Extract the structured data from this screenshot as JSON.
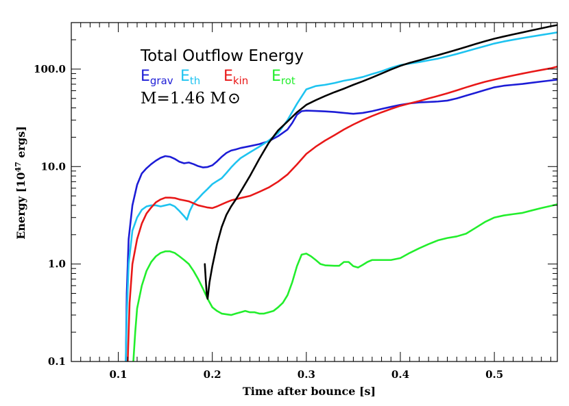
{
  "chart_data": {
    "type": "line",
    "title": "Total Outflow Energy",
    "annotation": "M=1.46 M",
    "annotation_symbol": "⊙",
    "xlabel": "Time after bounce [s]",
    "ylabel_main": "Energy [10",
    "ylabel_sup": "47",
    "ylabel_end": " ergs]",
    "xlim": [
      0.05,
      0.567
    ],
    "ylim": [
      0.1,
      300
    ],
    "yscale": "log",
    "grid": false,
    "legend_placement": "top-left",
    "x_ticks": [
      {
        "value": 0.1,
        "label": "0.1"
      },
      {
        "value": 0.2,
        "label": "0.2"
      },
      {
        "value": 0.3,
        "label": "0.3"
      },
      {
        "value": 0.4,
        "label": "0.4"
      },
      {
        "value": 0.5,
        "label": "0.5"
      }
    ],
    "y_ticks": [
      {
        "value": 0.1,
        "label": "0.1"
      },
      {
        "value": 1.0,
        "label": "1.0"
      },
      {
        "value": 10.0,
        "label": "10.0"
      },
      {
        "value": 100.0,
        "label": "100.0"
      }
    ],
    "series": [
      {
        "name": "E",
        "sub": "grav",
        "color": "#1c1cd6",
        "points": [
          [
            0.108,
            0.1
          ],
          [
            0.109,
            0.5
          ],
          [
            0.111,
            1.8
          ],
          [
            0.115,
            4.0
          ],
          [
            0.12,
            6.5
          ],
          [
            0.125,
            8.5
          ],
          [
            0.13,
            9.6
          ],
          [
            0.135,
            10.6
          ],
          [
            0.14,
            11.5
          ],
          [
            0.145,
            12.3
          ],
          [
            0.15,
            12.8
          ],
          [
            0.155,
            12.6
          ],
          [
            0.16,
            12.0
          ],
          [
            0.165,
            11.2
          ],
          [
            0.17,
            10.8
          ],
          [
            0.175,
            11.0
          ],
          [
            0.18,
            10.6
          ],
          [
            0.185,
            10.1
          ],
          [
            0.19,
            9.8
          ],
          [
            0.195,
            9.9
          ],
          [
            0.2,
            10.3
          ],
          [
            0.205,
            11.3
          ],
          [
            0.21,
            12.6
          ],
          [
            0.215,
            13.8
          ],
          [
            0.22,
            14.6
          ],
          [
            0.225,
            15.0
          ],
          [
            0.23,
            15.5
          ],
          [
            0.24,
            16.2
          ],
          [
            0.25,
            17.0
          ],
          [
            0.26,
            18.2
          ],
          [
            0.27,
            20.5
          ],
          [
            0.28,
            24.0
          ],
          [
            0.285,
            28.0
          ],
          [
            0.29,
            34.0
          ],
          [
            0.295,
            37.0
          ],
          [
            0.3,
            37.5
          ],
          [
            0.31,
            37.2
          ],
          [
            0.32,
            36.8
          ],
          [
            0.33,
            36.3
          ],
          [
            0.34,
            35.5
          ],
          [
            0.35,
            34.8
          ],
          [
            0.36,
            35.5
          ],
          [
            0.37,
            37.0
          ],
          [
            0.38,
            39.0
          ],
          [
            0.39,
            41.0
          ],
          [
            0.4,
            43.0
          ],
          [
            0.41,
            44.5
          ],
          [
            0.42,
            45.5
          ],
          [
            0.43,
            46.0
          ],
          [
            0.44,
            46.5
          ],
          [
            0.45,
            47.5
          ],
          [
            0.46,
            50.0
          ],
          [
            0.47,
            53.5
          ],
          [
            0.48,
            57.0
          ],
          [
            0.49,
            61.0
          ],
          [
            0.5,
            65.0
          ],
          [
            0.51,
            67.5
          ],
          [
            0.52,
            69.0
          ],
          [
            0.53,
            70.5
          ],
          [
            0.54,
            72.5
          ],
          [
            0.55,
            74.5
          ],
          [
            0.56,
            76.5
          ],
          [
            0.567,
            78.0
          ]
        ]
      },
      {
        "name": "E",
        "sub": "th",
        "color": "#1ec3f0",
        "points": [
          [
            0.108,
            0.1
          ],
          [
            0.109,
            0.3
          ],
          [
            0.111,
            1.0
          ],
          [
            0.115,
            2.2
          ],
          [
            0.12,
            3.0
          ],
          [
            0.125,
            3.6
          ],
          [
            0.13,
            3.9
          ],
          [
            0.135,
            4.0
          ],
          [
            0.14,
            4.0
          ],
          [
            0.145,
            3.9
          ],
          [
            0.15,
            4.0
          ],
          [
            0.155,
            4.1
          ],
          [
            0.16,
            3.9
          ],
          [
            0.165,
            3.5
          ],
          [
            0.17,
            3.1
          ],
          [
            0.173,
            2.85
          ],
          [
            0.176,
            3.5
          ],
          [
            0.18,
            4.2
          ],
          [
            0.185,
            4.7
          ],
          [
            0.19,
            5.3
          ],
          [
            0.195,
            5.9
          ],
          [
            0.2,
            6.6
          ],
          [
            0.205,
            7.1
          ],
          [
            0.21,
            7.6
          ],
          [
            0.215,
            8.6
          ],
          [
            0.22,
            9.8
          ],
          [
            0.225,
            11.0
          ],
          [
            0.23,
            12.2
          ],
          [
            0.24,
            14.0
          ],
          [
            0.25,
            16.0
          ],
          [
            0.26,
            18.5
          ],
          [
            0.27,
            22.0
          ],
          [
            0.28,
            30.0
          ],
          [
            0.29,
            44.0
          ],
          [
            0.3,
            62.0
          ],
          [
            0.31,
            67.0
          ],
          [
            0.32,
            69.0
          ],
          [
            0.33,
            72.0
          ],
          [
            0.34,
            76.0
          ],
          [
            0.35,
            79.0
          ],
          [
            0.36,
            83.0
          ],
          [
            0.37,
            89.0
          ],
          [
            0.38,
            95.0
          ],
          [
            0.39,
            103.0
          ],
          [
            0.4,
            110.0
          ],
          [
            0.41,
            114.0
          ],
          [
            0.42,
            118.0
          ],
          [
            0.43,
            123.0
          ],
          [
            0.44,
            128.0
          ],
          [
            0.45,
            135.0
          ],
          [
            0.46,
            143.0
          ],
          [
            0.47,
            152.0
          ],
          [
            0.48,
            162.0
          ],
          [
            0.49,
            172.0
          ],
          [
            0.5,
            183.0
          ],
          [
            0.51,
            192.0
          ],
          [
            0.52,
            200.0
          ],
          [
            0.53,
            208.0
          ],
          [
            0.54,
            216.0
          ],
          [
            0.55,
            224.0
          ],
          [
            0.56,
            232.0
          ],
          [
            0.567,
            238.0
          ]
        ]
      },
      {
        "name": "E",
        "sub": "kin",
        "color": "#e81818",
        "points": [
          [
            0.11,
            0.1
          ],
          [
            0.112,
            0.4
          ],
          [
            0.115,
            1.0
          ],
          [
            0.12,
            1.8
          ],
          [
            0.125,
            2.6
          ],
          [
            0.13,
            3.3
          ],
          [
            0.135,
            3.8
          ],
          [
            0.14,
            4.3
          ],
          [
            0.145,
            4.6
          ],
          [
            0.15,
            4.8
          ],
          [
            0.155,
            4.8
          ],
          [
            0.16,
            4.75
          ],
          [
            0.165,
            4.6
          ],
          [
            0.17,
            4.5
          ],
          [
            0.175,
            4.4
          ],
          [
            0.18,
            4.2
          ],
          [
            0.185,
            4.0
          ],
          [
            0.19,
            3.9
          ],
          [
            0.195,
            3.8
          ],
          [
            0.2,
            3.75
          ],
          [
            0.205,
            3.9
          ],
          [
            0.21,
            4.1
          ],
          [
            0.215,
            4.3
          ],
          [
            0.22,
            4.5
          ],
          [
            0.23,
            4.75
          ],
          [
            0.24,
            5.0
          ],
          [
            0.25,
            5.5
          ],
          [
            0.26,
            6.1
          ],
          [
            0.27,
            7.0
          ],
          [
            0.28,
            8.3
          ],
          [
            0.29,
            10.5
          ],
          [
            0.3,
            13.5
          ],
          [
            0.31,
            16.0
          ],
          [
            0.32,
            18.5
          ],
          [
            0.33,
            21.0
          ],
          [
            0.34,
            24.0
          ],
          [
            0.35,
            27.0
          ],
          [
            0.36,
            30.0
          ],
          [
            0.37,
            33.0
          ],
          [
            0.38,
            36.0
          ],
          [
            0.39,
            39.0
          ],
          [
            0.4,
            42.0
          ],
          [
            0.41,
            44.5
          ],
          [
            0.42,
            47.0
          ],
          [
            0.43,
            50.0
          ],
          [
            0.44,
            53.0
          ],
          [
            0.45,
            56.5
          ],
          [
            0.46,
            60.5
          ],
          [
            0.47,
            65.0
          ],
          [
            0.48,
            69.5
          ],
          [
            0.49,
            74.0
          ],
          [
            0.5,
            78.0
          ],
          [
            0.51,
            82.0
          ],
          [
            0.52,
            86.0
          ],
          [
            0.53,
            90.0
          ],
          [
            0.54,
            94.0
          ],
          [
            0.55,
            98.0
          ],
          [
            0.56,
            102.0
          ],
          [
            0.567,
            106.0
          ]
        ]
      },
      {
        "name": "E",
        "sub": "rot",
        "color": "#22ee2c",
        "points": [
          [
            0.116,
            0.1
          ],
          [
            0.118,
            0.2
          ],
          [
            0.12,
            0.35
          ],
          [
            0.125,
            0.6
          ],
          [
            0.13,
            0.85
          ],
          [
            0.135,
            1.05
          ],
          [
            0.14,
            1.2
          ],
          [
            0.145,
            1.3
          ],
          [
            0.15,
            1.35
          ],
          [
            0.155,
            1.35
          ],
          [
            0.16,
            1.3
          ],
          [
            0.165,
            1.2
          ],
          [
            0.17,
            1.1
          ],
          [
            0.175,
            1.0
          ],
          [
            0.18,
            0.85
          ],
          [
            0.185,
            0.7
          ],
          [
            0.19,
            0.56
          ],
          [
            0.195,
            0.44
          ],
          [
            0.2,
            0.36
          ],
          [
            0.205,
            0.33
          ],
          [
            0.21,
            0.31
          ],
          [
            0.215,
            0.305
          ],
          [
            0.22,
            0.3
          ],
          [
            0.225,
            0.31
          ],
          [
            0.23,
            0.32
          ],
          [
            0.235,
            0.33
          ],
          [
            0.24,
            0.32
          ],
          [
            0.245,
            0.32
          ],
          [
            0.25,
            0.31
          ],
          [
            0.255,
            0.31
          ],
          [
            0.26,
            0.32
          ],
          [
            0.265,
            0.33
          ],
          [
            0.27,
            0.36
          ],
          [
            0.275,
            0.4
          ],
          [
            0.28,
            0.48
          ],
          [
            0.285,
            0.65
          ],
          [
            0.29,
            0.95
          ],
          [
            0.295,
            1.25
          ],
          [
            0.3,
            1.28
          ],
          [
            0.305,
            1.2
          ],
          [
            0.31,
            1.1
          ],
          [
            0.315,
            1.0
          ],
          [
            0.32,
            0.97
          ],
          [
            0.33,
            0.96
          ],
          [
            0.335,
            0.96
          ],
          [
            0.34,
            1.05
          ],
          [
            0.345,
            1.05
          ],
          [
            0.35,
            0.95
          ],
          [
            0.355,
            0.92
          ],
          [
            0.36,
            0.98
          ],
          [
            0.365,
            1.05
          ],
          [
            0.37,
            1.1
          ],
          [
            0.38,
            1.1
          ],
          [
            0.39,
            1.1
          ],
          [
            0.4,
            1.15
          ],
          [
            0.41,
            1.3
          ],
          [
            0.42,
            1.45
          ],
          [
            0.43,
            1.6
          ],
          [
            0.44,
            1.75
          ],
          [
            0.45,
            1.85
          ],
          [
            0.46,
            1.92
          ],
          [
            0.47,
            2.05
          ],
          [
            0.48,
            2.35
          ],
          [
            0.49,
            2.7
          ],
          [
            0.5,
            3.0
          ],
          [
            0.51,
            3.15
          ],
          [
            0.52,
            3.25
          ],
          [
            0.53,
            3.35
          ],
          [
            0.54,
            3.55
          ],
          [
            0.55,
            3.75
          ],
          [
            0.56,
            3.95
          ],
          [
            0.567,
            4.1
          ]
        ]
      },
      {
        "name": "",
        "sub": "",
        "color": "#000000",
        "points": [
          [
            0.192,
            1.0
          ],
          [
            0.193,
            0.7
          ],
          [
            0.194,
            0.5
          ],
          [
            0.195,
            0.44
          ],
          [
            0.197,
            0.65
          ],
          [
            0.2,
            0.95
          ],
          [
            0.205,
            1.6
          ],
          [
            0.21,
            2.4
          ],
          [
            0.215,
            3.2
          ],
          [
            0.22,
            3.9
          ],
          [
            0.225,
            4.6
          ],
          [
            0.23,
            5.5
          ],
          [
            0.24,
            8.0
          ],
          [
            0.25,
            12.0
          ],
          [
            0.26,
            17.5
          ],
          [
            0.27,
            23.5
          ],
          [
            0.28,
            29.0
          ],
          [
            0.29,
            36.0
          ],
          [
            0.3,
            43.0
          ],
          [
            0.31,
            48.0
          ],
          [
            0.32,
            53.0
          ],
          [
            0.33,
            58.0
          ],
          [
            0.34,
            63.0
          ],
          [
            0.35,
            69.0
          ],
          [
            0.36,
            75.0
          ],
          [
            0.37,
            82.0
          ],
          [
            0.38,
            90.0
          ],
          [
            0.39,
            99.0
          ],
          [
            0.4,
            108.0
          ],
          [
            0.41,
            116.0
          ],
          [
            0.42,
            123.0
          ],
          [
            0.43,
            131.0
          ],
          [
            0.44,
            139.0
          ],
          [
            0.45,
            148.0
          ],
          [
            0.46,
            158.0
          ],
          [
            0.47,
            169.0
          ],
          [
            0.48,
            181.0
          ],
          [
            0.49,
            193.0
          ],
          [
            0.5,
            205.0
          ],
          [
            0.51,
            216.0
          ],
          [
            0.52,
            227.0
          ],
          [
            0.53,
            238.0
          ],
          [
            0.54,
            250.0
          ],
          [
            0.55,
            262.0
          ],
          [
            0.56,
            275.0
          ],
          [
            0.567,
            283.0
          ]
        ]
      }
    ]
  }
}
